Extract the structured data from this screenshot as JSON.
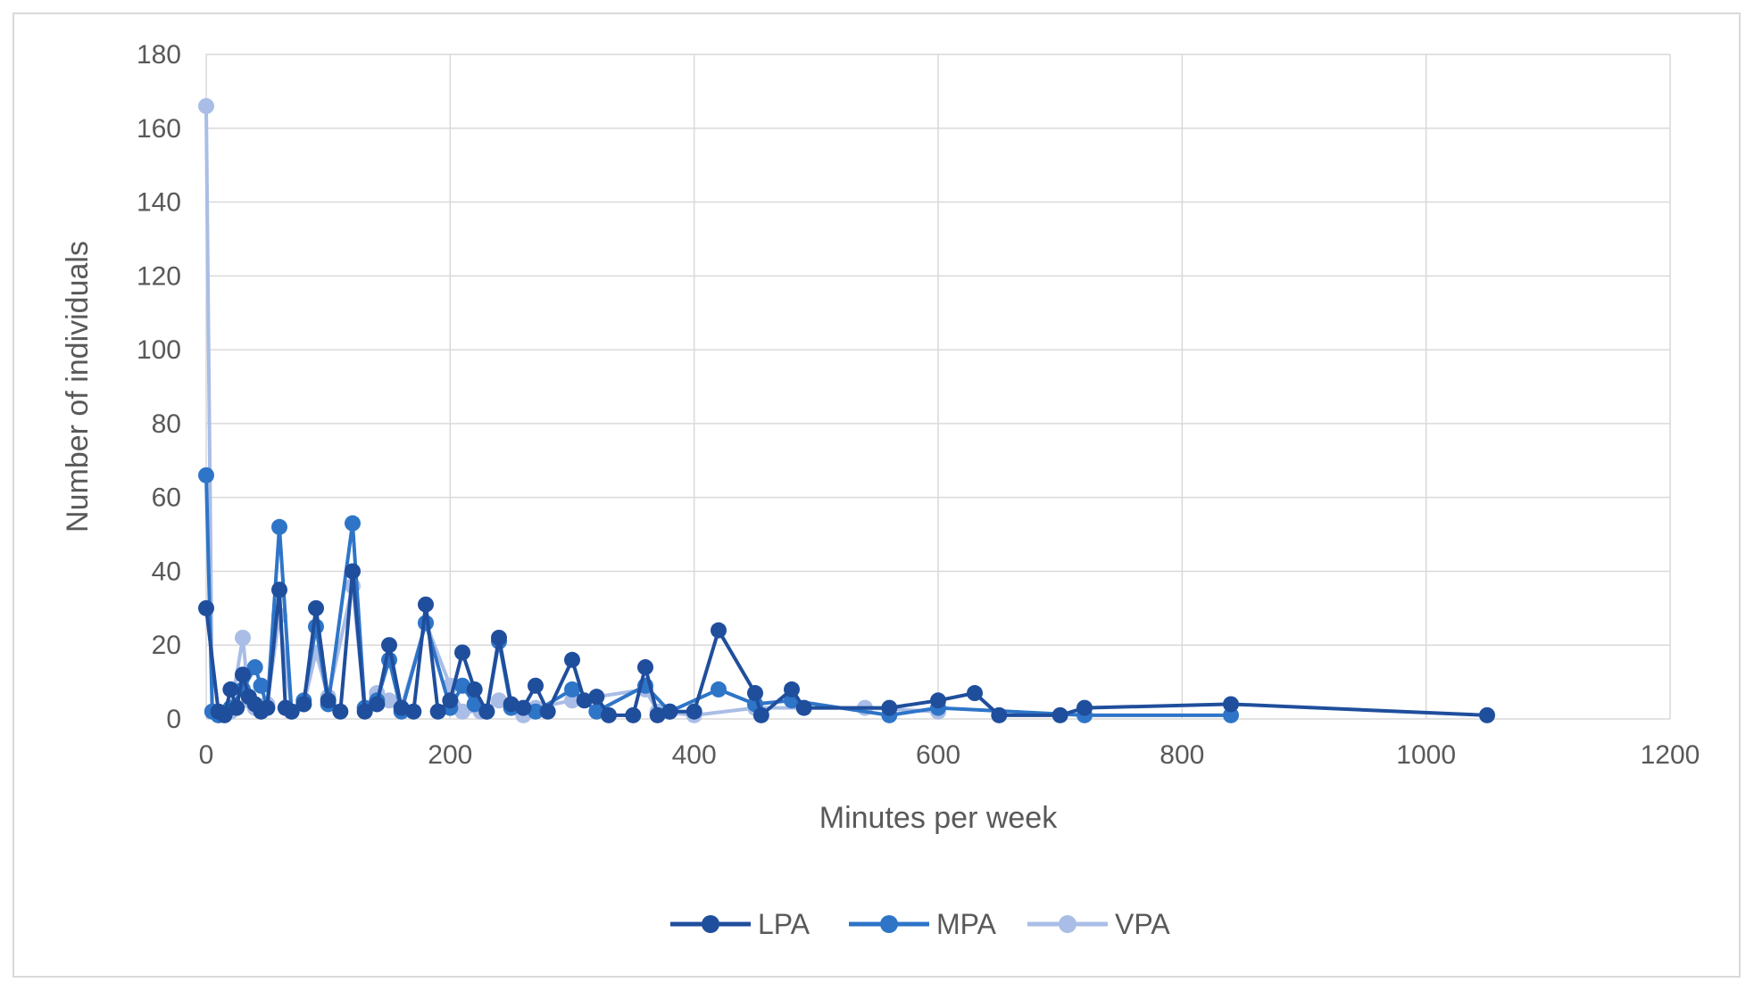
{
  "chart_data": {
    "type": "line",
    "title": "",
    "xlabel": "Minutes per week",
    "ylabel": "Number of individuals",
    "xlim": [
      0,
      1200
    ],
    "ylim": [
      0,
      180
    ],
    "x_ticks": [
      0,
      200,
      400,
      600,
      800,
      1000,
      1200
    ],
    "y_ticks": [
      0,
      20,
      40,
      60,
      80,
      100,
      120,
      140,
      160,
      180
    ],
    "grid": true,
    "legend_position": "bottom",
    "series": [
      {
        "name": "LPA",
        "color": "#1f4e9c",
        "points": [
          [
            0,
            30
          ],
          [
            10,
            2
          ],
          [
            15,
            1
          ],
          [
            20,
            8
          ],
          [
            25,
            3
          ],
          [
            30,
            12
          ],
          [
            35,
            6
          ],
          [
            40,
            4
          ],
          [
            45,
            2
          ],
          [
            50,
            3
          ],
          [
            60,
            35
          ],
          [
            65,
            3
          ],
          [
            70,
            2
          ],
          [
            80,
            4
          ],
          [
            90,
            30
          ],
          [
            100,
            5
          ],
          [
            110,
            2
          ],
          [
            120,
            40
          ],
          [
            130,
            2
          ],
          [
            140,
            4
          ],
          [
            150,
            20
          ],
          [
            160,
            3
          ],
          [
            170,
            2
          ],
          [
            180,
            31
          ],
          [
            190,
            2
          ],
          [
            200,
            5
          ],
          [
            210,
            18
          ],
          [
            220,
            8
          ],
          [
            230,
            2
          ],
          [
            240,
            22
          ],
          [
            250,
            4
          ],
          [
            260,
            3
          ],
          [
            270,
            9
          ],
          [
            280,
            2
          ],
          [
            300,
            16
          ],
          [
            310,
            5
          ],
          [
            320,
            6
          ],
          [
            330,
            1
          ],
          [
            350,
            1
          ],
          [
            360,
            14
          ],
          [
            370,
            1
          ],
          [
            380,
            2
          ],
          [
            400,
            2
          ],
          [
            420,
            24
          ],
          [
            450,
            7
          ],
          [
            455,
            1
          ],
          [
            480,
            8
          ],
          [
            490,
            3
          ],
          [
            560,
            3
          ],
          [
            600,
            5
          ],
          [
            630,
            7
          ],
          [
            650,
            1
          ],
          [
            700,
            1
          ],
          [
            720,
            3
          ],
          [
            840,
            4
          ],
          [
            1050,
            1
          ]
        ]
      },
      {
        "name": "MPA",
        "color": "#2e75c8",
        "points": [
          [
            0,
            66
          ],
          [
            5,
            2
          ],
          [
            10,
            1
          ],
          [
            20,
            3
          ],
          [
            30,
            8
          ],
          [
            40,
            14
          ],
          [
            45,
            9
          ],
          [
            50,
            3
          ],
          [
            60,
            52
          ],
          [
            70,
            2
          ],
          [
            80,
            5
          ],
          [
            90,
            25
          ],
          [
            100,
            4
          ],
          [
            120,
            53
          ],
          [
            130,
            3
          ],
          [
            140,
            5
          ],
          [
            150,
            16
          ],
          [
            160,
            2
          ],
          [
            180,
            26
          ],
          [
            200,
            3
          ],
          [
            210,
            9
          ],
          [
            220,
            4
          ],
          [
            230,
            2
          ],
          [
            240,
            21
          ],
          [
            250,
            3
          ],
          [
            270,
            2
          ],
          [
            300,
            8
          ],
          [
            320,
            2
          ],
          [
            360,
            9
          ],
          [
            380,
            2
          ],
          [
            420,
            8
          ],
          [
            450,
            4
          ],
          [
            480,
            5
          ],
          [
            560,
            1
          ],
          [
            600,
            3
          ],
          [
            720,
            1
          ],
          [
            840,
            1
          ]
        ]
      },
      {
        "name": "VPA",
        "color": "#a9bde6",
        "points": [
          [
            0,
            166
          ],
          [
            5,
            2
          ],
          [
            10,
            1
          ],
          [
            20,
            2
          ],
          [
            30,
            22
          ],
          [
            35,
            5
          ],
          [
            40,
            3
          ],
          [
            50,
            4
          ],
          [
            60,
            28
          ],
          [
            70,
            2
          ],
          [
            80,
            4
          ],
          [
            90,
            18
          ],
          [
            100,
            6
          ],
          [
            120,
            36
          ],
          [
            130,
            3
          ],
          [
            140,
            7
          ],
          [
            150,
            5
          ],
          [
            160,
            3
          ],
          [
            180,
            26
          ],
          [
            200,
            9
          ],
          [
            210,
            2
          ],
          [
            225,
            2
          ],
          [
            240,
            5
          ],
          [
            260,
            1
          ],
          [
            270,
            3
          ],
          [
            300,
            5
          ],
          [
            360,
            8
          ],
          [
            370,
            2
          ],
          [
            400,
            1
          ],
          [
            450,
            3
          ],
          [
            540,
            3
          ],
          [
            600,
            2
          ]
        ]
      }
    ]
  }
}
